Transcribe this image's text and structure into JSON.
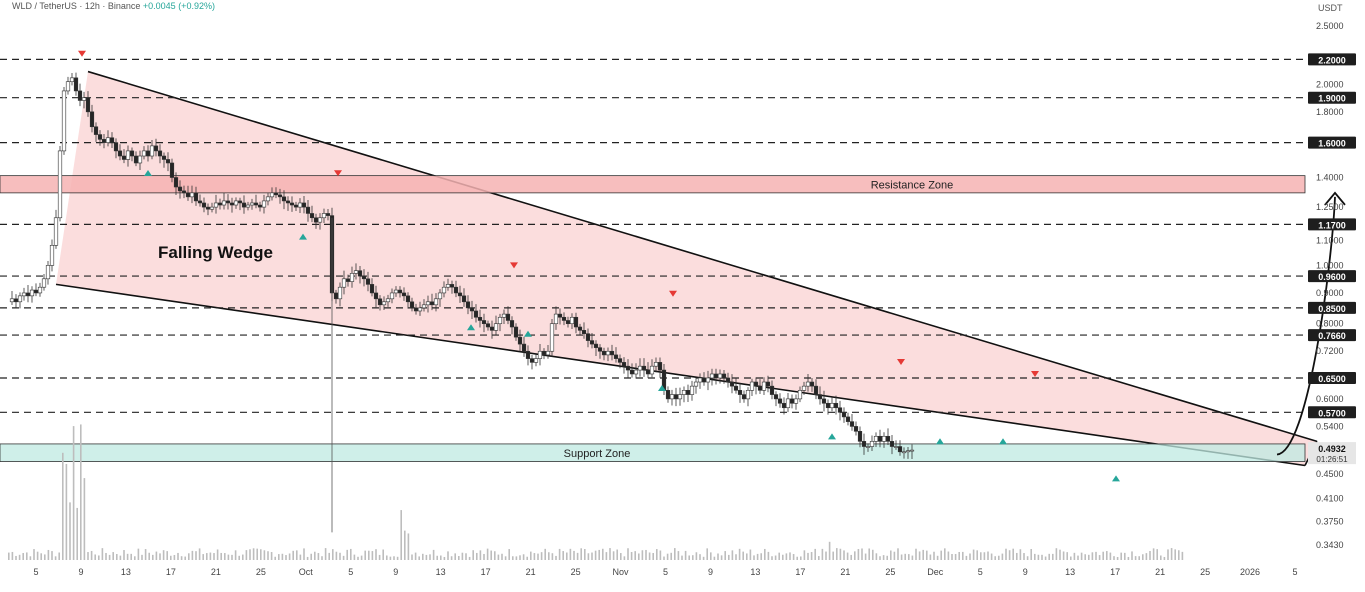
{
  "header": {
    "symbol_line": "WLD / TetherUS · 12h · Binance",
    "change": "+0.0045 (+0.92%)",
    "currency": "USDT"
  },
  "chart_data": {
    "type": "candlestick",
    "title": "",
    "scale": "log",
    "grid": false,
    "ylim": [
      0.32,
      2.6
    ],
    "price_axis_ticks": [
      2.5,
      2.0,
      1.8,
      1.4,
      1.25,
      1.1,
      1.0,
      0.9,
      0.8,
      0.72,
      0.6,
      0.54,
      0.45,
      0.41,
      0.375,
      0.343
    ],
    "price_axis_tick_labels": [
      "2.5000",
      "2.0000",
      "1.8000",
      "1.4000",
      "1.2500",
      "1.1000",
      "1.0000",
      "0.9000",
      "0.8000",
      "0.7200",
      "0.6000",
      "0.5400",
      "0.4500",
      "0.4100",
      "0.3750",
      "0.3430"
    ],
    "levels": [
      {
        "value": 2.2,
        "label": "2.2000"
      },
      {
        "value": 1.9,
        "label": "1.9000"
      },
      {
        "value": 1.6,
        "label": "1.6000"
      },
      {
        "value": 1.17,
        "label": "1.1700"
      },
      {
        "value": 0.96,
        "label": "0.9600"
      },
      {
        "value": 0.85,
        "label": "0.8500"
      },
      {
        "value": 0.766,
        "label": "0.7660"
      },
      {
        "value": 0.65,
        "label": "0.6500"
      },
      {
        "value": 0.57,
        "label": "0.5700"
      }
    ],
    "current_price": {
      "value": 0.4932,
      "label": "0.4932",
      "countdown": "01:26:51"
    },
    "time_axis_labels": [
      "5",
      "9",
      "13",
      "17",
      "21",
      "25",
      "Oct",
      "5",
      "9",
      "13",
      "17",
      "21",
      "25",
      "Nov",
      "5",
      "9",
      "13",
      "17",
      "21",
      "25",
      "Dec",
      "5",
      "9",
      "13",
      "17",
      "21",
      "25",
      "2026",
      "5"
    ],
    "zones": [
      {
        "name": "Resistance Zone",
        "low": 1.32,
        "high": 1.41,
        "color": "#f6b3b3"
      },
      {
        "name": "Support Zone",
        "low": 0.472,
        "high": 0.505,
        "color": "#bfe9e2"
      }
    ],
    "pattern": {
      "label": "Falling Wedge",
      "upper_line": [
        [
          8,
          2.1
        ],
        [
          1237,
          0.51
        ]
      ],
      "lower_line": [
        [
          -24,
          0.93
        ],
        [
          1225,
          0.465
        ]
      ],
      "fill": "#f9d2d2"
    },
    "close_series": [
      [
        -72,
        0.87
      ],
      [
        -68,
        0.88
      ],
      [
        -64,
        0.87
      ],
      [
        -60,
        0.89
      ],
      [
        -56,
        0.9
      ],
      [
        -52,
        0.89
      ],
      [
        -48,
        0.91
      ],
      [
        -44,
        0.9
      ],
      [
        -40,
        0.92
      ],
      [
        -36,
        0.95
      ],
      [
        -32,
        1.0
      ],
      [
        -28,
        1.08
      ],
      [
        -24,
        1.2
      ],
      [
        -20,
        1.55
      ],
      [
        -16,
        1.95
      ],
      [
        -12,
        2.02
      ],
      [
        -8,
        2.05
      ],
      [
        -4,
        1.95
      ],
      [
        0,
        1.88
      ],
      [
        4,
        1.9
      ],
      [
        8,
        1.8
      ],
      [
        12,
        1.7
      ],
      [
        16,
        1.65
      ],
      [
        20,
        1.62
      ],
      [
        24,
        1.6
      ],
      [
        28,
        1.63
      ],
      [
        32,
        1.6
      ],
      [
        36,
        1.55
      ],
      [
        40,
        1.52
      ],
      [
        44,
        1.5
      ],
      [
        48,
        1.55
      ],
      [
        52,
        1.52
      ],
      [
        56,
        1.48
      ],
      [
        60,
        1.52
      ],
      [
        64,
        1.55
      ],
      [
        68,
        1.52
      ],
      [
        72,
        1.58
      ],
      [
        76,
        1.55
      ],
      [
        80,
        1.52
      ],
      [
        84,
        1.5
      ],
      [
        88,
        1.48
      ],
      [
        92,
        1.4
      ],
      [
        96,
        1.35
      ],
      [
        100,
        1.33
      ],
      [
        104,
        1.32
      ],
      [
        108,
        1.3
      ],
      [
        112,
        1.32
      ],
      [
        116,
        1.28
      ],
      [
        120,
        1.27
      ],
      [
        124,
        1.25
      ],
      [
        128,
        1.24
      ],
      [
        132,
        1.25
      ],
      [
        136,
        1.27
      ],
      [
        140,
        1.26
      ],
      [
        144,
        1.28
      ],
      [
        148,
        1.27
      ],
      [
        152,
        1.26
      ],
      [
        156,
        1.28
      ],
      [
        160,
        1.27
      ],
      [
        164,
        1.25
      ],
      [
        168,
        1.26
      ],
      [
        172,
        1.27
      ],
      [
        176,
        1.26
      ],
      [
        180,
        1.25
      ],
      [
        184,
        1.28
      ],
      [
        188,
        1.3
      ],
      [
        192,
        1.32
      ],
      [
        196,
        1.31
      ],
      [
        200,
        1.3
      ],
      [
        204,
        1.28
      ],
      [
        208,
        1.27
      ],
      [
        212,
        1.26
      ],
      [
        216,
        1.25
      ],
      [
        220,
        1.27
      ],
      [
        224,
        1.25
      ],
      [
        228,
        1.22
      ],
      [
        232,
        1.2
      ],
      [
        236,
        1.18
      ],
      [
        240,
        1.2
      ],
      [
        244,
        1.22
      ],
      [
        248,
        1.21
      ],
      [
        252,
        0.9
      ],
      [
        256,
        0.88
      ],
      [
        260,
        0.92
      ],
      [
        264,
        0.95
      ],
      [
        268,
        0.94
      ],
      [
        272,
        0.97
      ],
      [
        276,
        0.98
      ],
      [
        280,
        0.96
      ],
      [
        284,
        0.95
      ],
      [
        288,
        0.93
      ],
      [
        292,
        0.9
      ],
      [
        296,
        0.88
      ],
      [
        300,
        0.86
      ],
      [
        304,
        0.87
      ],
      [
        308,
        0.88
      ],
      [
        312,
        0.9
      ],
      [
        316,
        0.91
      ],
      [
        320,
        0.9
      ],
      [
        324,
        0.89
      ],
      [
        328,
        0.87
      ],
      [
        332,
        0.85
      ],
      [
        336,
        0.84
      ],
      [
        340,
        0.85
      ],
      [
        344,
        0.86
      ],
      [
        348,
        0.87
      ],
      [
        352,
        0.86
      ],
      [
        356,
        0.88
      ],
      [
        360,
        0.9
      ],
      [
        364,
        0.92
      ],
      [
        368,
        0.93
      ],
      [
        372,
        0.92
      ],
      [
        376,
        0.9
      ],
      [
        380,
        0.89
      ],
      [
        384,
        0.87
      ],
      [
        388,
        0.85
      ],
      [
        392,
        0.84
      ],
      [
        396,
        0.82
      ],
      [
        400,
        0.81
      ],
      [
        404,
        0.8
      ],
      [
        408,
        0.79
      ],
      [
        412,
        0.78
      ],
      [
        416,
        0.8
      ],
      [
        420,
        0.82
      ],
      [
        424,
        0.83
      ],
      [
        428,
        0.81
      ],
      [
        432,
        0.79
      ],
      [
        436,
        0.76
      ],
      [
        440,
        0.74
      ],
      [
        444,
        0.72
      ],
      [
        448,
        0.7
      ],
      [
        452,
        0.69
      ],
      [
        456,
        0.7
      ],
      [
        460,
        0.72
      ],
      [
        464,
        0.71
      ],
      [
        468,
        0.72
      ],
      [
        472,
        0.8
      ],
      [
        476,
        0.83
      ],
      [
        480,
        0.82
      ],
      [
        484,
        0.81
      ],
      [
        488,
        0.8
      ],
      [
        492,
        0.82
      ],
      [
        496,
        0.79
      ],
      [
        500,
        0.78
      ],
      [
        504,
        0.77
      ],
      [
        508,
        0.75
      ],
      [
        512,
        0.74
      ],
      [
        516,
        0.73
      ],
      [
        520,
        0.72
      ],
      [
        524,
        0.71
      ],
      [
        528,
        0.72
      ],
      [
        532,
        0.71
      ],
      [
        536,
        0.7
      ],
      [
        540,
        0.69
      ],
      [
        544,
        0.68
      ],
      [
        548,
        0.67
      ],
      [
        552,
        0.66
      ],
      [
        556,
        0.67
      ],
      [
        560,
        0.68
      ],
      [
        564,
        0.67
      ],
      [
        568,
        0.66
      ],
      [
        572,
        0.68
      ],
      [
        576,
        0.69
      ],
      [
        580,
        0.67
      ],
      [
        584,
        0.62
      ],
      [
        588,
        0.6
      ],
      [
        592,
        0.61
      ],
      [
        596,
        0.6
      ],
      [
        600,
        0.61
      ],
      [
        604,
        0.62
      ],
      [
        608,
        0.61
      ],
      [
        612,
        0.63
      ],
      [
        616,
        0.64
      ],
      [
        620,
        0.65
      ],
      [
        624,
        0.64
      ],
      [
        628,
        0.65
      ],
      [
        632,
        0.66
      ],
      [
        636,
        0.65
      ],
      [
        640,
        0.66
      ],
      [
        644,
        0.65
      ],
      [
        648,
        0.64
      ],
      [
        652,
        0.63
      ],
      [
        656,
        0.62
      ],
      [
        660,
        0.61
      ],
      [
        664,
        0.6
      ],
      [
        668,
        0.62
      ],
      [
        672,
        0.64
      ],
      [
        676,
        0.63
      ],
      [
        680,
        0.62
      ],
      [
        684,
        0.64
      ],
      [
        688,
        0.63
      ],
      [
        692,
        0.61
      ],
      [
        696,
        0.6
      ],
      [
        700,
        0.59
      ],
      [
        704,
        0.58
      ],
      [
        708,
        0.6
      ],
      [
        712,
        0.59
      ],
      [
        716,
        0.6
      ],
      [
        720,
        0.62
      ],
      [
        724,
        0.63
      ],
      [
        728,
        0.64
      ],
      [
        732,
        0.63
      ],
      [
        736,
        0.61
      ],
      [
        740,
        0.6
      ],
      [
        744,
        0.59
      ],
      [
        748,
        0.58
      ],
      [
        752,
        0.59
      ],
      [
        756,
        0.58
      ],
      [
        760,
        0.57
      ],
      [
        764,
        0.56
      ],
      [
        768,
        0.55
      ],
      [
        772,
        0.54
      ],
      [
        776,
        0.53
      ],
      [
        780,
        0.51
      ],
      [
        784,
        0.5
      ],
      [
        788,
        0.5
      ],
      [
        792,
        0.51
      ],
      [
        796,
        0.52
      ],
      [
        800,
        0.51
      ],
      [
        804,
        0.52
      ],
      [
        808,
        0.51
      ],
      [
        812,
        0.5
      ],
      [
        816,
        0.5
      ],
      [
        820,
        0.49
      ],
      [
        824,
        0.49
      ],
      [
        828,
        0.492
      ],
      [
        832,
        0.4932
      ]
    ],
    "markers_high": [
      [
        2,
        2.18
      ],
      [
        258,
        1.38
      ],
      [
        434,
        0.97
      ],
      [
        593,
        0.87
      ],
      [
        821,
        0.67
      ],
      [
        955,
        0.64
      ]
    ],
    "markers_low": [
      [
        68,
        1.48
      ],
      [
        223,
        1.16
      ],
      [
        391,
        0.82
      ],
      [
        448,
        0.8
      ],
      [
        582,
        0.65
      ],
      [
        752,
        0.54
      ],
      [
        860,
        0.53
      ],
      [
        923,
        0.53
      ],
      [
        1036,
        0.46
      ]
    ],
    "projection": [
      [
        1197,
        0.485
      ],
      [
        1228,
        0.5
      ],
      [
        1252,
        1.0
      ],
      [
        1255,
        1.3
      ]
    ]
  }
}
